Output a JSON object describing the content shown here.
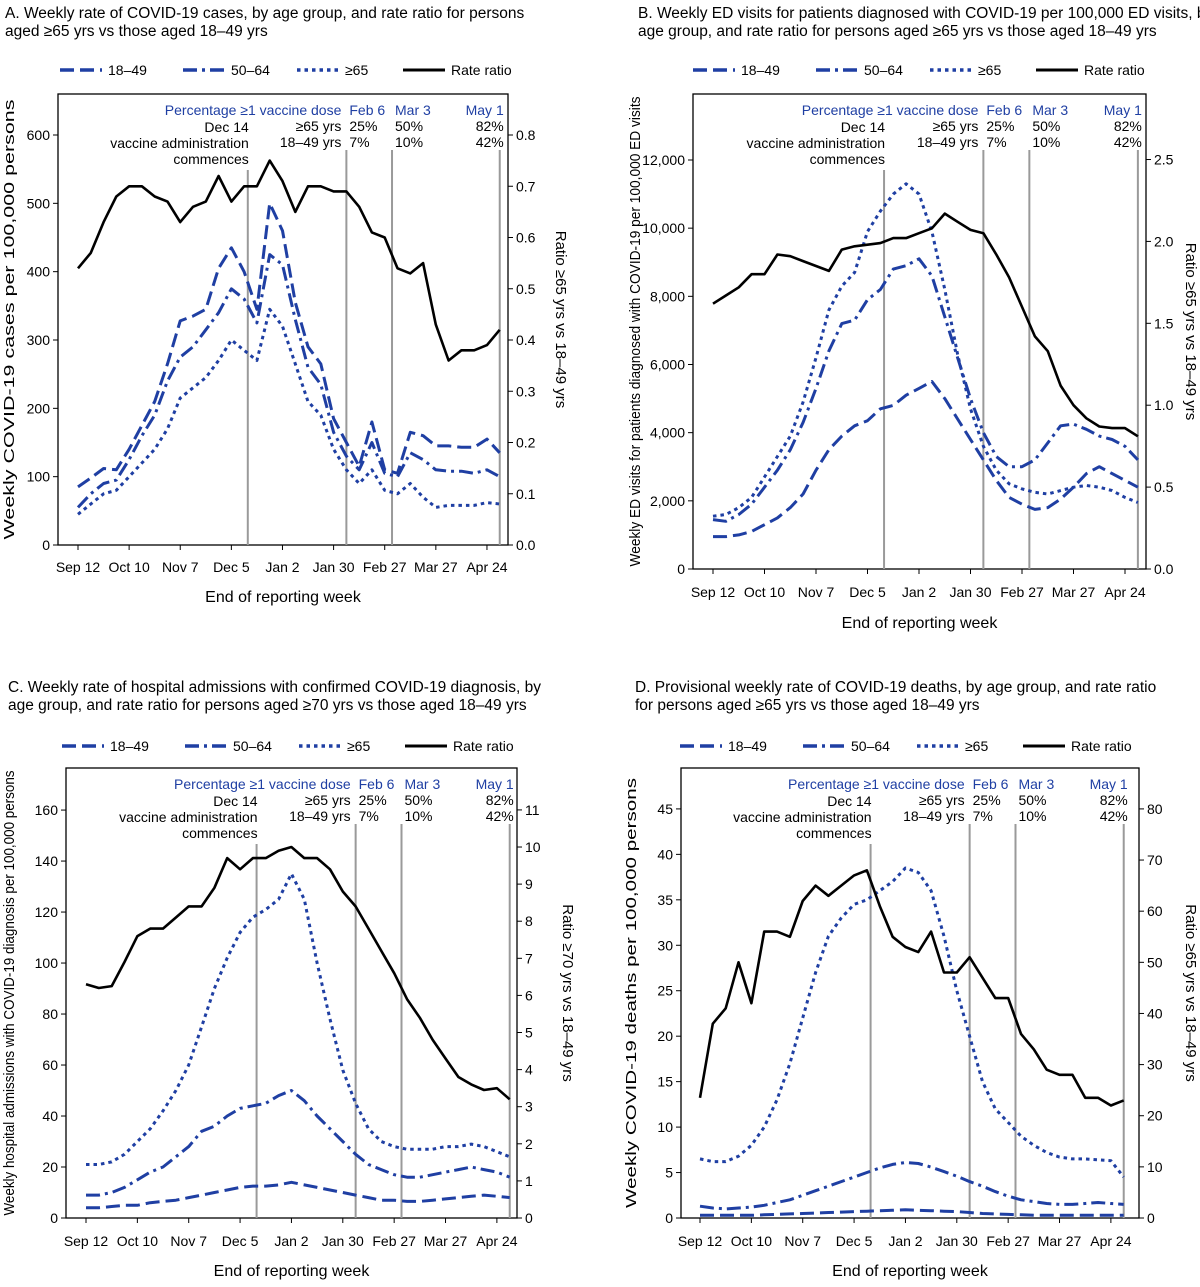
{
  "colors": {
    "age_series": "#1f3fa3",
    "ratio": "#000000",
    "annotation_blue": "#1f3fa3",
    "event_line": "#9a9a9a"
  },
  "legend": [
    "18–49",
    "50–64",
    "≥65",
    "Rate ratio"
  ],
  "vaccination_annotations": {
    "header": "Percentage ≥1 vaccine dose",
    "start": {
      "date": "Dec 14",
      "lines": [
        "Dec 14",
        "vaccine administration",
        "commences"
      ]
    },
    "age_labels": [
      "≥65 yrs",
      "18–49 yrs"
    ],
    "milestones": [
      {
        "date": "Feb 6",
        "pct": [
          "25%",
          "7%"
        ]
      },
      {
        "date": "Mar 3",
        "pct": [
          "50%",
          "10%"
        ]
      },
      {
        "date": "May 1",
        "pct": [
          "82%",
          "42%"
        ]
      }
    ]
  },
  "chart_data": [
    {
      "type": "line",
      "title": [
        "A. Weekly rate of COVID-19 cases, by age group, and rate ratio for persons",
        "aged ≥65 yrs vs those aged 18–49 yrs"
      ],
      "xlabel": "End of reporting week",
      "ylabel": "Weekly COVID-19 cases per 100,000 persons",
      "y2label": "Ratio ≥65 yrs vs 18–49 yrs",
      "ylim": [
        0,
        660
      ],
      "y2lim": [
        0,
        0.88
      ],
      "yticks": [
        "0",
        "100",
        "200",
        "300",
        "400",
        "500",
        "600"
      ],
      "y2ticks": [
        "0.0",
        "0.1",
        "0.2",
        "0.3",
        "0.4",
        "0.5",
        "0.6",
        "0.7",
        "0.8"
      ],
      "xticks": [
        "Sep 12",
        "Oct 10",
        "Nov 7",
        "Dec 5",
        "Jan 2",
        "Jan 30",
        "Feb 27",
        "Mar 27",
        "Apr 24"
      ],
      "x": [
        "Sep 12",
        "Sep 19",
        "Sep 26",
        "Oct 3",
        "Oct 10",
        "Oct 17",
        "Oct 24",
        "Oct 31",
        "Nov 7",
        "Nov 14",
        "Nov 21",
        "Nov 28",
        "Dec 5",
        "Dec 12",
        "Dec 19",
        "Dec 26",
        "Jan 2",
        "Jan 9",
        "Jan 16",
        "Jan 23",
        "Jan 30",
        "Feb 6",
        "Feb 13",
        "Feb 20",
        "Feb 27",
        "Mar 6",
        "Mar 13",
        "Mar 20",
        "Mar 27",
        "Apr 3",
        "Apr 10",
        "Apr 17",
        "Apr 24",
        "May 1"
      ],
      "series": [
        {
          "name": "18–49",
          "axis": "left",
          "values": [
            85,
            98,
            112,
            110,
            140,
            175,
            210,
            265,
            328,
            335,
            345,
            405,
            435,
            400,
            345,
            500,
            460,
            355,
            290,
            265,
            185,
            150,
            115,
            180,
            110,
            105,
            165,
            160,
            145,
            145,
            143,
            143,
            155,
            135
          ]
        },
        {
          "name": "50–64",
          "axis": "left",
          "values": [
            55,
            75,
            90,
            95,
            125,
            160,
            190,
            240,
            275,
            290,
            315,
            340,
            375,
            360,
            325,
            425,
            410,
            330,
            260,
            235,
            165,
            130,
            110,
            150,
            105,
            100,
            135,
            125,
            110,
            108,
            108,
            105,
            110,
            100
          ]
        },
        {
          "name": "≥65",
          "axis": "left",
          "values": [
            45,
            60,
            75,
            80,
            100,
            120,
            140,
            170,
            215,
            230,
            245,
            270,
            300,
            285,
            270,
            345,
            320,
            265,
            210,
            190,
            140,
            110,
            90,
            110,
            80,
            75,
            90,
            70,
            55,
            58,
            58,
            58,
            62,
            60
          ]
        },
        {
          "name": "Rate ratio",
          "axis": "right",
          "values": [
            0.54,
            0.57,
            0.63,
            0.68,
            0.7,
            0.7,
            0.68,
            0.67,
            0.63,
            0.66,
            0.67,
            0.72,
            0.67,
            0.7,
            0.7,
            0.75,
            0.71,
            0.65,
            0.7,
            0.7,
            0.69,
            0.69,
            0.66,
            0.61,
            0.6,
            0.54,
            0.53,
            0.55,
            0.43,
            0.36,
            0.38,
            0.38,
            0.39,
            0.42
          ]
        }
      ]
    },
    {
      "type": "line",
      "title": [
        "B. Weekly ED visits for patients diagnosed with COVID-19 per 100,000 ED visits, by",
        "age group, and rate ratio for persons aged ≥65 yrs vs those aged 18–49 yrs"
      ],
      "xlabel": "End of reporting week",
      "ylabel": "Weekly ED visits for patients diagnosed with COVID-19 per 100,000 ED visits",
      "y2label": "Ratio ≥65 yrs vs 18–49 yrs",
      "ylim": [
        0,
        13936
      ],
      "y2lim": [
        0,
        2.9
      ],
      "yticks": [
        "0",
        "2,000",
        "4,000",
        "6,000",
        "8,000",
        "10,000",
        "12,000"
      ],
      "y2ticks": [
        "0.0",
        "0.5",
        "1.0",
        "1.5",
        "2.0",
        "2.5"
      ],
      "xticks": [
        "Sep 12",
        "Oct 10",
        "Nov 7",
        "Dec 5",
        "Jan 2",
        "Jan 30",
        "Feb 27",
        "Mar 27",
        "Apr 24"
      ],
      "x": [
        "Sep 12",
        "Sep 19",
        "Sep 26",
        "Oct 3",
        "Oct 10",
        "Oct 17",
        "Oct 24",
        "Oct 31",
        "Nov 7",
        "Nov 14",
        "Nov 21",
        "Nov 28",
        "Dec 5",
        "Dec 12",
        "Dec 19",
        "Dec 26",
        "Jan 2",
        "Jan 9",
        "Jan 16",
        "Jan 23",
        "Jan 30",
        "Feb 6",
        "Feb 13",
        "Feb 20",
        "Feb 27",
        "Mar 6",
        "Mar 13",
        "Mar 20",
        "Mar 27",
        "Apr 3",
        "Apr 10",
        "Apr 17",
        "Apr 24",
        "May 1"
      ],
      "series": [
        {
          "name": "18–49",
          "axis": "left",
          "values": [
            950,
            950,
            1000,
            1100,
            1300,
            1500,
            1800,
            2200,
            2900,
            3500,
            3900,
            4200,
            4350,
            4700,
            4800,
            5100,
            5300,
            5500,
            5000,
            4400,
            3800,
            3200,
            2600,
            2100,
            1900,
            1750,
            1800,
            2050,
            2400,
            2800,
            3000,
            2800,
            2600,
            2400
          ]
        },
        {
          "name": "50–64",
          "axis": "left",
          "values": [
            1450,
            1400,
            1600,
            1900,
            2400,
            2900,
            3500,
            4300,
            5300,
            6400,
            7200,
            7300,
            7900,
            8200,
            8800,
            8900,
            9100,
            8600,
            7400,
            6200,
            5000,
            4000,
            3300,
            3000,
            3000,
            3200,
            3700,
            4200,
            4250,
            4100,
            3900,
            3800,
            3600,
            3200
          ]
        },
        {
          "name": "≥65",
          "axis": "left",
          "values": [
            1550,
            1600,
            1800,
            2100,
            2700,
            3300,
            3900,
            4900,
            6200,
            7600,
            8300,
            8700,
            9900,
            10500,
            11000,
            11300,
            11000,
            9900,
            8200,
            6300,
            4700,
            3600,
            2900,
            2500,
            2350,
            2250,
            2200,
            2300,
            2400,
            2450,
            2400,
            2300,
            2100,
            1950
          ]
        },
        {
          "name": "Rate ratio",
          "axis": "right",
          "values": [
            1.62,
            1.67,
            1.72,
            1.8,
            1.8,
            1.92,
            1.91,
            1.88,
            1.85,
            1.82,
            1.95,
            1.97,
            1.98,
            1.99,
            2.02,
            2.02,
            2.05,
            2.08,
            2.17,
            2.12,
            2.07,
            2.05,
            1.92,
            1.78,
            1.6,
            1.42,
            1.33,
            1.12,
            1.0,
            0.92,
            0.87,
            0.86,
            0.86,
            0.81
          ]
        }
      ]
    },
    {
      "type": "line",
      "title": [
        "C. Weekly rate of hospital admissions with confirmed COVID-19 diagnosis, by",
        "age group, and rate ratio for persons aged ≥70 yrs vs those aged 18–49 yrs"
      ],
      "xlabel": "End of reporting week",
      "ylabel": "Weekly hospital admissions with COVID-19 diagnosis per 100,000 persons",
      "y2label": "Ratio ≥70 yrs vs 18–49 yrs",
      "ylim": [
        0,
        176.5
      ],
      "y2lim": [
        0,
        12.13
      ],
      "yticks": [
        "0",
        "20",
        "40",
        "60",
        "80",
        "100",
        "120",
        "140",
        "160"
      ],
      "y2ticks": [
        "0",
        "1",
        "2",
        "3",
        "4",
        "5",
        "6",
        "7",
        "8",
        "9",
        "10",
        "11"
      ],
      "xticks": [
        "Sep 12",
        "Oct 10",
        "Nov 7",
        "Dec 5",
        "Jan 2",
        "Jan 30",
        "Feb 27",
        "Mar 27",
        "Apr 24"
      ],
      "x": [
        "Sep 12",
        "Sep 19",
        "Sep 26",
        "Oct 3",
        "Oct 10",
        "Oct 17",
        "Oct 24",
        "Oct 31",
        "Nov 7",
        "Nov 14",
        "Nov 21",
        "Nov 28",
        "Dec 5",
        "Dec 12",
        "Dec 19",
        "Dec 26",
        "Jan 2",
        "Jan 9",
        "Jan 16",
        "Jan 23",
        "Jan 30",
        "Feb 6",
        "Feb 13",
        "Feb 20",
        "Feb 27",
        "Mar 6",
        "Mar 13",
        "Mar 20",
        "Mar 27",
        "Apr 3",
        "Apr 10",
        "Apr 17",
        "Apr 24",
        "May 1"
      ],
      "series": [
        {
          "name": "18–49",
          "axis": "left",
          "values": [
            4,
            4,
            4.5,
            5,
            5,
            6,
            6.5,
            7,
            8,
            9,
            10,
            11,
            12,
            12.5,
            12.5,
            13,
            14,
            13,
            12,
            11,
            10,
            9,
            8,
            7,
            7,
            6.5,
            6.5,
            7,
            7.5,
            8,
            8.5,
            9,
            8.5,
            8
          ]
        },
        {
          "name": "50–64",
          "axis": "left",
          "values": [
            9,
            9,
            10,
            12,
            15,
            18,
            20,
            24,
            28,
            34,
            36,
            40,
            43,
            44,
            45,
            48,
            50,
            46,
            40,
            35,
            30,
            25,
            21,
            19,
            17,
            16,
            16,
            17,
            18,
            19,
            20,
            19,
            18,
            16
          ]
        },
        {
          "name": "≥65",
          "axis": "left",
          "values": [
            21,
            21,
            22,
            25,
            30,
            35,
            42,
            50,
            60,
            75,
            90,
            102,
            112,
            118,
            121,
            125,
            135,
            125,
            100,
            78,
            58,
            45,
            35,
            30,
            28,
            27,
            27,
            27,
            28,
            28,
            29,
            28,
            26,
            24
          ]
        },
        {
          "name": "Rate ratio",
          "axis": "right",
          "values": [
            6.3,
            6.2,
            6.25,
            6.9,
            7.6,
            7.8,
            7.8,
            8.1,
            8.4,
            8.4,
            8.9,
            9.7,
            9.4,
            9.7,
            9.7,
            9.9,
            10.0,
            9.7,
            9.7,
            9.4,
            8.8,
            8.4,
            7.8,
            7.2,
            6.6,
            5.9,
            5.4,
            4.8,
            4.3,
            3.8,
            3.6,
            3.45,
            3.5,
            3.2
          ]
        }
      ]
    },
    {
      "type": "line",
      "title": [
        "D. Provisional weekly rate of COVID-19 deaths, by age group, and rate ratio",
        "for persons aged ≥65 yrs vs those aged 18–49 yrs"
      ],
      "xlabel": "End of reporting week",
      "ylabel": "Weekly COVID-19 deaths per 100,000 persons",
      "y2label": "Ratio ≥65 yrs vs 18–49 yrs",
      "ylim": [
        0,
        49.5
      ],
      "y2lim": [
        0,
        88
      ],
      "yticks": [
        "0",
        "5",
        "10",
        "15",
        "20",
        "25",
        "30",
        "35",
        "40",
        "45"
      ],
      "y2ticks": [
        "0",
        "10",
        "20",
        "30",
        "40",
        "50",
        "60",
        "70",
        "80"
      ],
      "xticks": [
        "Sep 12",
        "Oct 10",
        "Nov 7",
        "Dec 5",
        "Jan 2",
        "Jan 30",
        "Feb 27",
        "Mar 27",
        "Apr 24"
      ],
      "x": [
        "Sep 12",
        "Sep 19",
        "Sep 26",
        "Oct 3",
        "Oct 10",
        "Oct 17",
        "Oct 24",
        "Oct 31",
        "Nov 7",
        "Nov 14",
        "Nov 21",
        "Nov 28",
        "Dec 5",
        "Dec 12",
        "Dec 19",
        "Dec 26",
        "Jan 2",
        "Jan 9",
        "Jan 16",
        "Jan 23",
        "Jan 30",
        "Feb 6",
        "Feb 13",
        "Feb 20",
        "Feb 27",
        "Mar 6",
        "Mar 13",
        "Mar 20",
        "Mar 27",
        "Apr 3",
        "Apr 10",
        "Apr 17",
        "Apr 24",
        "May 1"
      ],
      "series": [
        {
          "name": "18–49",
          "axis": "left",
          "values": [
            0.3,
            0.3,
            0.3,
            0.3,
            0.3,
            0.35,
            0.4,
            0.45,
            0.5,
            0.55,
            0.6,
            0.65,
            0.7,
            0.75,
            0.8,
            0.85,
            0.9,
            0.85,
            0.8,
            0.75,
            0.7,
            0.6,
            0.5,
            0.45,
            0.4,
            0.35,
            0.3,
            0.3,
            0.3,
            0.3,
            0.3,
            0.3,
            0.3,
            0.3
          ]
        },
        {
          "name": "50–64",
          "axis": "left",
          "values": [
            1.3,
            1.1,
            1.0,
            1.1,
            1.2,
            1.4,
            1.7,
            2.0,
            2.5,
            3.0,
            3.5,
            4.0,
            4.5,
            5.0,
            5.5,
            5.9,
            6.1,
            6.0,
            5.6,
            5.1,
            4.6,
            4.0,
            3.5,
            2.9,
            2.4,
            2.0,
            1.8,
            1.6,
            1.5,
            1.5,
            1.6,
            1.7,
            1.6,
            1.5
          ]
        },
        {
          "name": "≥65",
          "axis": "left",
          "values": [
            6.5,
            6.2,
            6.2,
            6.8,
            8,
            10,
            13,
            17,
            22,
            27,
            31,
            33,
            34.5,
            35,
            36,
            37,
            38.5,
            38,
            36,
            31,
            25,
            20,
            15,
            12,
            10.5,
            9,
            8,
            7.2,
            6.7,
            6.5,
            6.5,
            6.4,
            6.3,
            4.5
          ]
        },
        {
          "name": "Rate ratio",
          "axis": "right",
          "values": [
            23.5,
            38,
            41,
            50,
            42,
            56,
            56,
            55,
            62,
            65,
            63,
            65,
            67,
            68,
            61,
            55,
            53,
            52,
            56,
            48,
            48,
            51,
            47,
            43,
            43,
            36,
            33,
            29,
            28,
            28,
            23.5,
            23.5,
            22,
            23
          ]
        }
      ]
    }
  ]
}
